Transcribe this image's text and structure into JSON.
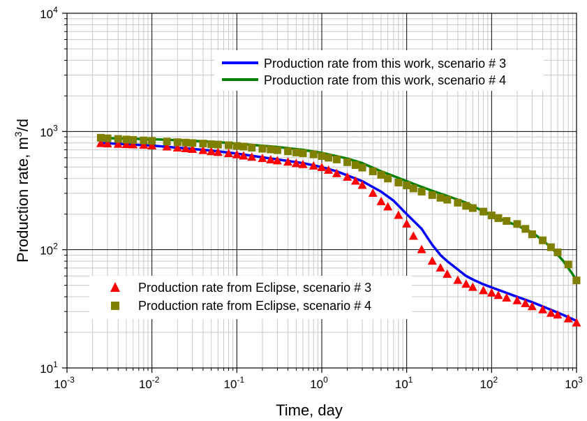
{
  "chart_data": {
    "type": "line",
    "xscale": "log",
    "yscale": "log",
    "xlabel": "Time, day",
    "ylabel_main": "Production rate, m",
    "ylabel_sup": "3",
    "ylabel_tail": "/d",
    "xlim": [
      0.001,
      1000
    ],
    "ylim": [
      10,
      10000
    ],
    "grid": true,
    "x_ticks": [
      {
        "base": "10",
        "exp": "-3"
      },
      {
        "base": "10",
        "exp": "-2"
      },
      {
        "base": "10",
        "exp": "-1"
      },
      {
        "base": "10",
        "exp": "0"
      },
      {
        "base": "10",
        "exp": "1"
      },
      {
        "base": "10",
        "exp": "2"
      },
      {
        "base": "10",
        "exp": "3"
      }
    ],
    "y_ticks": [
      {
        "base": "10",
        "exp": "1"
      },
      {
        "base": "10",
        "exp": "2"
      },
      {
        "base": "10",
        "exp": "3"
      },
      {
        "base": "10",
        "exp": "4"
      }
    ],
    "legend_lines": {
      "placement": "top-right",
      "entries": [
        {
          "label": "Production rate from this work, scenario # 3",
          "color": "#0000ff"
        },
        {
          "label": "Production rate from this work, scenario # 4",
          "color": "#008000"
        }
      ]
    },
    "legend_markers": {
      "placement": "bottom-left",
      "entries": [
        {
          "label": "Production rate from Eclipse, scenario # 3",
          "color": "#ff0000",
          "marker": "triangle"
        },
        {
          "label": "Production rate from Eclipse, scenario # 4",
          "color": "#808000",
          "marker": "square"
        }
      ]
    },
    "series": [
      {
        "kind": "line",
        "color": "#0000ff",
        "x": [
          0.0025,
          0.01,
          0.05,
          0.1,
          0.3,
          0.6,
          1,
          1.5,
          3,
          5,
          7,
          10,
          15,
          20,
          25,
          30,
          40,
          50,
          60,
          80,
          100,
          200,
          300,
          500,
          700,
          1000
        ],
        "y": [
          800,
          760,
          690,
          650,
          580,
          540,
          500,
          460,
          380,
          310,
          260,
          200,
          150,
          110,
          90,
          80,
          68,
          60,
          56,
          51,
          48,
          40,
          36,
          31,
          28,
          25
        ]
      },
      {
        "kind": "line",
        "color": "#008000",
        "x": [
          0.0025,
          0.01,
          0.05,
          0.1,
          0.3,
          0.6,
          1,
          2,
          3,
          5,
          7,
          10,
          15,
          20,
          30,
          50,
          100,
          200,
          300,
          400,
          500,
          700,
          900,
          1000
        ],
        "y": [
          880,
          860,
          820,
          790,
          740,
          700,
          660,
          590,
          540,
          460,
          420,
          380,
          340,
          315,
          285,
          250,
          195,
          160,
          140,
          120,
          105,
          80,
          62,
          55
        ]
      },
      {
        "kind": "marker",
        "color": "#ff0000",
        "marker": "triangle",
        "x": [
          0.0025,
          0.003,
          0.004,
          0.005,
          0.006,
          0.008,
          0.01,
          0.015,
          0.02,
          0.025,
          0.03,
          0.04,
          0.05,
          0.06,
          0.08,
          0.1,
          0.12,
          0.15,
          0.2,
          0.25,
          0.3,
          0.4,
          0.5,
          0.6,
          0.8,
          1,
          1.2,
          1.5,
          2,
          2.5,
          3,
          4,
          5,
          6,
          8,
          10,
          12,
          15,
          20,
          25,
          30,
          40,
          50,
          60,
          80,
          100,
          120,
          150,
          200,
          250,
          300,
          400,
          500,
          600,
          800,
          1000
        ],
        "y": [
          790,
          785,
          780,
          775,
          770,
          765,
          755,
          740,
          725,
          715,
          705,
          690,
          675,
          665,
          650,
          635,
          620,
          605,
          590,
          575,
          565,
          550,
          535,
          525,
          510,
          495,
          470,
          440,
          410,
          380,
          350,
          300,
          255,
          230,
          195,
          165,
          130,
          100,
          80,
          70,
          62,
          55,
          51,
          48,
          45,
          43,
          41,
          39,
          37,
          35,
          33,
          31,
          29,
          28,
          26,
          24
        ]
      },
      {
        "kind": "marker",
        "color": "#808000",
        "marker": "square",
        "x": [
          0.0025,
          0.003,
          0.004,
          0.005,
          0.006,
          0.008,
          0.01,
          0.015,
          0.02,
          0.025,
          0.03,
          0.04,
          0.05,
          0.06,
          0.08,
          0.1,
          0.12,
          0.15,
          0.2,
          0.25,
          0.3,
          0.4,
          0.5,
          0.6,
          0.8,
          1,
          1.2,
          1.5,
          2,
          2.5,
          3,
          4,
          5,
          6,
          8,
          10,
          12,
          15,
          20,
          25,
          30,
          40,
          50,
          60,
          80,
          100,
          120,
          150,
          200,
          250,
          300,
          400,
          500,
          600,
          800,
          1000
        ],
        "y": [
          885,
          875,
          865,
          855,
          848,
          840,
          832,
          822,
          812,
          805,
          798,
          790,
          780,
          775,
          765,
          755,
          745,
          730,
          715,
          705,
          695,
          680,
          665,
          655,
          640,
          620,
          600,
          580,
          550,
          520,
          495,
          460,
          430,
          400,
          370,
          350,
          330,
          310,
          290,
          275,
          265,
          250,
          235,
          225,
          210,
          195,
          185,
          175,
          165,
          150,
          135,
          120,
          105,
          95,
          75,
          55
        ]
      }
    ]
  }
}
